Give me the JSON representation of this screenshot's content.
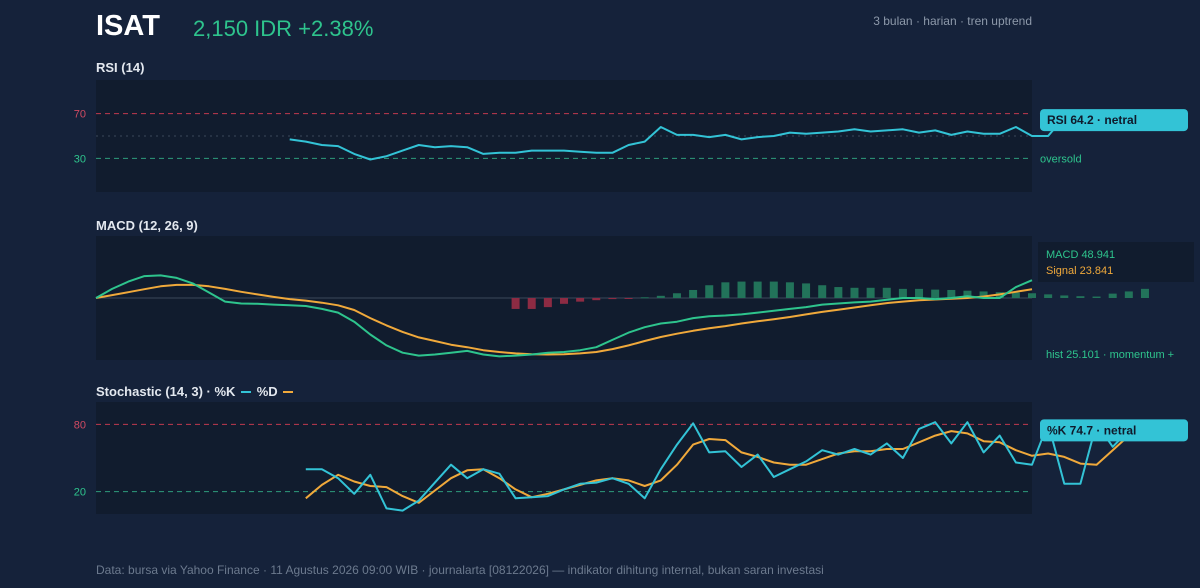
{
  "header": {
    "ticker": "ISAT",
    "price": "2,150 IDR +2.38%",
    "meta": "3 bulan · harian · tren uptrend"
  },
  "colors": {
    "background": "#15223a",
    "panel": "#111c2e",
    "up": "#2ec48d",
    "down": "#b83a53",
    "rsi_line": "#33c3d6",
    "macd_line": "#2ec48d",
    "signal_line": "#f0a93b",
    "upper_threshold": "#c0394f",
    "lower_threshold": "#2e9c7c"
  },
  "chart_data": [
    {
      "type": "line",
      "title": "RSI (14)",
      "ylim": [
        0,
        100
      ],
      "yticks": [
        70,
        30
      ],
      "overbought": 70,
      "oversold": 30,
      "midline": 50,
      "oversold_label": "oversold",
      "callout": "RSI 64.2 · netral",
      "series": [
        {
          "values": [
            47,
            45,
            42,
            41,
            34,
            29,
            32,
            37,
            42,
            40,
            41,
            40,
            34,
            35,
            35,
            37,
            37,
            37,
            36,
            35,
            35,
            42,
            45,
            58,
            51,
            51,
            49,
            51,
            47,
            49,
            50,
            53,
            52,
            53,
            54,
            56,
            54,
            55,
            56,
            53,
            55,
            51,
            54,
            52,
            52,
            58,
            50,
            50,
            67,
            62,
            64.2
          ],
          "x_start": 12
        }
      ]
    },
    {
      "type": "line",
      "title": "MACD (12, 26, 9)",
      "ylim": [
        -170,
        170
      ],
      "legend": [
        "MACD 48.941",
        "Signal 23.841"
      ],
      "hist_label": "hist 25.101 · momentum +",
      "series": [
        {
          "name": "MACD",
          "values": [
            0,
            25,
            45,
            60,
            62,
            55,
            40,
            15,
            -10,
            -15,
            -16,
            -18,
            -20,
            -22,
            -30,
            -40,
            -65,
            -100,
            -130,
            -150,
            -158,
            -155,
            -150,
            -145,
            -155,
            -160,
            -158,
            -155,
            -150,
            -148,
            -143,
            -135,
            -115,
            -95,
            -80,
            -70,
            -65,
            -55,
            -50,
            -48,
            -45,
            -40,
            -35,
            -30,
            -25,
            -18,
            -15,
            -12,
            -10,
            -5,
            0,
            0,
            -3,
            0,
            5,
            0,
            0,
            30,
            48.941
          ]
        },
        {
          "name": "Signal",
          "values": [
            0,
            8,
            16,
            24,
            32,
            36,
            36,
            32,
            25,
            17,
            10,
            3,
            -3,
            -7,
            -13,
            -20,
            -33,
            -55,
            -75,
            -93,
            -108,
            -118,
            -128,
            -135,
            -143,
            -148,
            -152,
            -154,
            -155,
            -154,
            -152,
            -148,
            -140,
            -130,
            -118,
            -107,
            -98,
            -90,
            -83,
            -77,
            -70,
            -64,
            -58,
            -52,
            -45,
            -38,
            -32,
            -26,
            -20,
            -14,
            -10,
            -6,
            -4,
            -2,
            0,
            4,
            10,
            17,
            23.841
          ]
        }
      ],
      "histogram": {
        "x_start": 26,
        "values": [
          -30,
          -30,
          -25,
          -16,
          -10,
          -6,
          -3,
          -1,
          2,
          6,
          13,
          22,
          35,
          43,
          45,
          45,
          45,
          43,
          40,
          35,
          30,
          28,
          28,
          28,
          25,
          25,
          23,
          22,
          20,
          18,
          16,
          15,
          13,
          10,
          7,
          5,
          4,
          12,
          18,
          25.101
        ]
      }
    },
    {
      "type": "line",
      "title": "Stochastic (14, 3) · %K",
      "legend": [
        "%D"
      ],
      "ylim": [
        0,
        100
      ],
      "yticks": [
        80,
        20
      ],
      "overbought": 80,
      "oversold": 20,
      "callout": "%K 74.7 · netral",
      "series": [
        {
          "name": "%K",
          "x_start": 13,
          "values": [
            40,
            40,
            32,
            18,
            35,
            5,
            3,
            12,
            28,
            44,
            32,
            40,
            36,
            14,
            15,
            16,
            22,
            27,
            28,
            32,
            27,
            14,
            40,
            62,
            81,
            55,
            56,
            42,
            53,
            33,
            40,
            47,
            57,
            53,
            58,
            53,
            63,
            50,
            76,
            82,
            63,
            82,
            55,
            70,
            46,
            44,
            81,
            27,
            27,
            81,
            60,
            74.7
          ]
        },
        {
          "name": "%D",
          "x_start": 13,
          "values": [
            14,
            26,
            35,
            29,
            25,
            24,
            16,
            10,
            21,
            32,
            39,
            40,
            32,
            22,
            15,
            18,
            22,
            26,
            30,
            32,
            30,
            25,
            30,
            44,
            62,
            67,
            66,
            55,
            51,
            46,
            44,
            44,
            49,
            54,
            56,
            56,
            58,
            58,
            64,
            70,
            74,
            72,
            65,
            64,
            57,
            52,
            54,
            51,
            45,
            44,
            57,
            70
          ]
        }
      ]
    }
  ],
  "footer": "Data: bursa via Yahoo Finance · 11 Agustus 2026 09:00 WIB · journalarta [08122026] — indikator dihitung internal, bukan saran investasi"
}
